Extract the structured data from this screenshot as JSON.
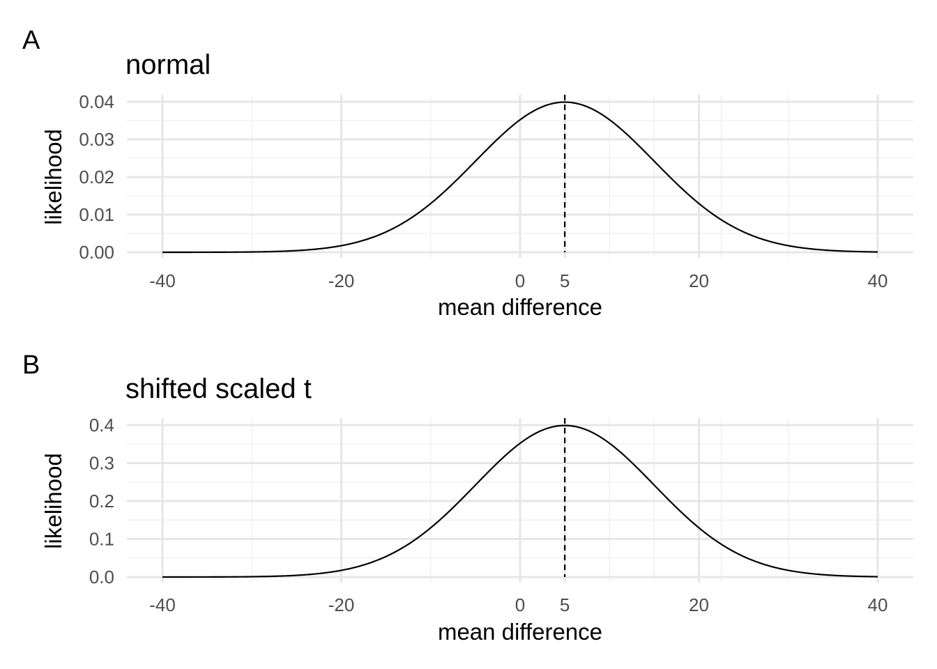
{
  "colors": {
    "curve": "#000000",
    "grid_major": "#e6e6e6",
    "grid_minor": "#f0f0f0",
    "marker_line": "#000000",
    "tick_text": "#4d4d4d",
    "background": "#ffffff"
  },
  "chart_data": [
    {
      "panel_tag": "A",
      "type": "line",
      "title": "normal",
      "xlabel": "mean difference",
      "ylabel": "likelihood",
      "xlim": [
        -42,
        42
      ],
      "ylim": [
        0,
        0.04
      ],
      "x_ticks": [
        -40,
        -20,
        0,
        5,
        20,
        40
      ],
      "x_tick_labels": [
        "-40",
        "-20",
        "0",
        "5",
        "20",
        "40"
      ],
      "x_minor_ticks": [
        -30,
        -10,
        10,
        15,
        22.5,
        30
      ],
      "y_ticks": [
        0,
        0.01,
        0.02,
        0.03,
        0.04
      ],
      "y_tick_labels": [
        "0.00",
        "0.01",
        "0.02",
        "0.03",
        "0.04"
      ],
      "grid": true,
      "vline": {
        "x": 5,
        "style": "dashed"
      },
      "series": [
        {
          "x": [
            -40,
            -35,
            -30,
            -25,
            -20,
            -15,
            -10,
            -5,
            0,
            5,
            10,
            15,
            20,
            25,
            30,
            35,
            40
          ],
          "y": [
            0.0,
            0.0,
            1e-05,
            0.00044,
            0.00175,
            0.0054,
            0.013,
            0.0242,
            0.0352,
            0.0399,
            0.0352,
            0.0242,
            0.013,
            0.0054,
            0.00175,
            0.00044,
            9e-05
          ]
        }
      ]
    },
    {
      "panel_tag": "B",
      "type": "line",
      "title": "shifted scaled t",
      "xlabel": "mean difference",
      "ylabel": "likelihood",
      "xlim": [
        -42,
        42
      ],
      "ylim": [
        0,
        0.4
      ],
      "x_ticks": [
        -40,
        -20,
        0,
        5,
        20,
        40
      ],
      "x_tick_labels": [
        "-40",
        "-20",
        "0",
        "5",
        "20",
        "40"
      ],
      "x_minor_ticks": [
        -30,
        -10,
        10,
        15,
        22.5,
        30
      ],
      "y_ticks": [
        0,
        0.1,
        0.2,
        0.3,
        0.4
      ],
      "y_tick_labels": [
        "0.0",
        "0.1",
        "0.2",
        "0.3",
        "0.4"
      ],
      "grid": true,
      "vline": {
        "x": 5,
        "style": "dashed"
      },
      "series": [
        {
          "x": [
            -40,
            -35,
            -30,
            -25,
            -20,
            -15,
            -10,
            -5,
            0,
            5,
            10,
            15,
            20,
            25,
            30,
            35,
            40
          ],
          "y": [
            0.0,
            0.0,
            0.0001,
            0.0044,
            0.0175,
            0.054,
            0.13,
            0.242,
            0.352,
            0.399,
            0.352,
            0.242,
            0.13,
            0.054,
            0.0175,
            0.0044,
            0.0009
          ]
        }
      ]
    }
  ]
}
